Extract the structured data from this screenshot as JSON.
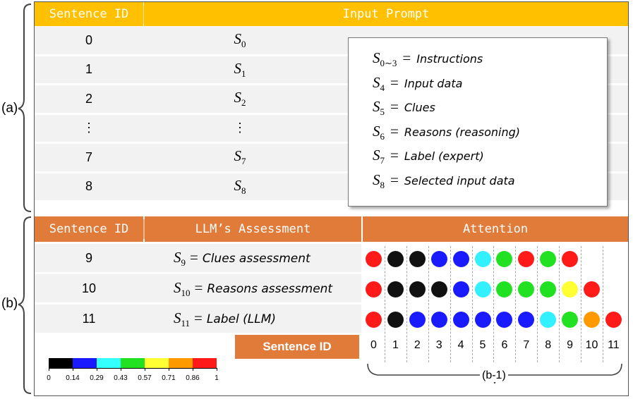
{
  "section_a": {
    "label": "(a)",
    "header": {
      "col1": "Sentence ID",
      "col2": "Input Prompt"
    },
    "rows": [
      {
        "id": "0",
        "sym": "S",
        "sub": "0"
      },
      {
        "id": "1",
        "sym": "S",
        "sub": "1"
      },
      {
        "id": "2",
        "sym": "S",
        "sub": "2"
      },
      {
        "id": "⋮",
        "sym": "⋮",
        "sub": ""
      },
      {
        "id": "7",
        "sym": "S",
        "sub": "7"
      },
      {
        "id": "8",
        "sym": "S",
        "sub": "8"
      }
    ],
    "legend": [
      {
        "sym": "S",
        "sub": "0∼3",
        "text": "Instructions"
      },
      {
        "sym": "S",
        "sub": "4",
        "text": "Input data"
      },
      {
        "sym": "S",
        "sub": "5",
        "text": "Clues"
      },
      {
        "sym": "S",
        "sub": "6",
        "text": "Reasons (reasoning)"
      },
      {
        "sym": "S",
        "sub": "7",
        "text": "Label (expert)"
      },
      {
        "sym": "S",
        "sub": "8",
        "text": "Selected input data"
      }
    ]
  },
  "section_b": {
    "label": "(b)",
    "header": {
      "col1": "Sentence ID",
      "col2": "LLM’s Assessment",
      "col3": "Attention"
    },
    "rows": [
      {
        "id": "9",
        "sym": "S",
        "sub": "9",
        "text": "Clues assessment",
        "dots": [
          "red",
          "black",
          "black",
          "blue",
          "blue",
          "cyan",
          "green",
          "red",
          "green",
          "red"
        ]
      },
      {
        "id": "10",
        "sym": "S",
        "sub": "10",
        "text": "Reasons assessment",
        "dots": [
          "red",
          "black",
          "black",
          "black",
          "blue",
          "cyan",
          "green",
          "green",
          "green",
          "yellow",
          "red"
        ]
      },
      {
        "id": "11",
        "sym": "S",
        "sub": "11",
        "text": "Label (LLM)",
        "dots": [
          "red",
          "black",
          "blue",
          "blue",
          "blue",
          "blue",
          "blue",
          "blue",
          "cyan",
          "green",
          "orange",
          "red"
        ]
      }
    ],
    "axis_label": "Sentence ID",
    "axis_ticks": [
      "0",
      "1",
      "2",
      "3",
      "4",
      "5",
      "6",
      "7",
      "8",
      "9",
      "10",
      "11"
    ],
    "brace_label": "(b-1)"
  },
  "colorbar": {
    "colors": [
      "#000000",
      "#1a1aff",
      "#33ffff",
      "#22e022",
      "#ffff33",
      "#ff9900",
      "#ff1a1a"
    ],
    "labels": [
      "0",
      "0.14",
      "0.29",
      "0.43",
      "0.57",
      "0.71",
      "0.86",
      "1"
    ]
  },
  "palette": {
    "black": "#111111",
    "blue": "#1a1aff",
    "cyan": "#33f0ff",
    "green": "#22e022",
    "yellow": "#ffff33",
    "orange": "#ff9900",
    "red": "#ff1a1a",
    "header_a": "#ffc000",
    "header_b": "#e07b39",
    "row_bg": "#f2f2f2"
  }
}
